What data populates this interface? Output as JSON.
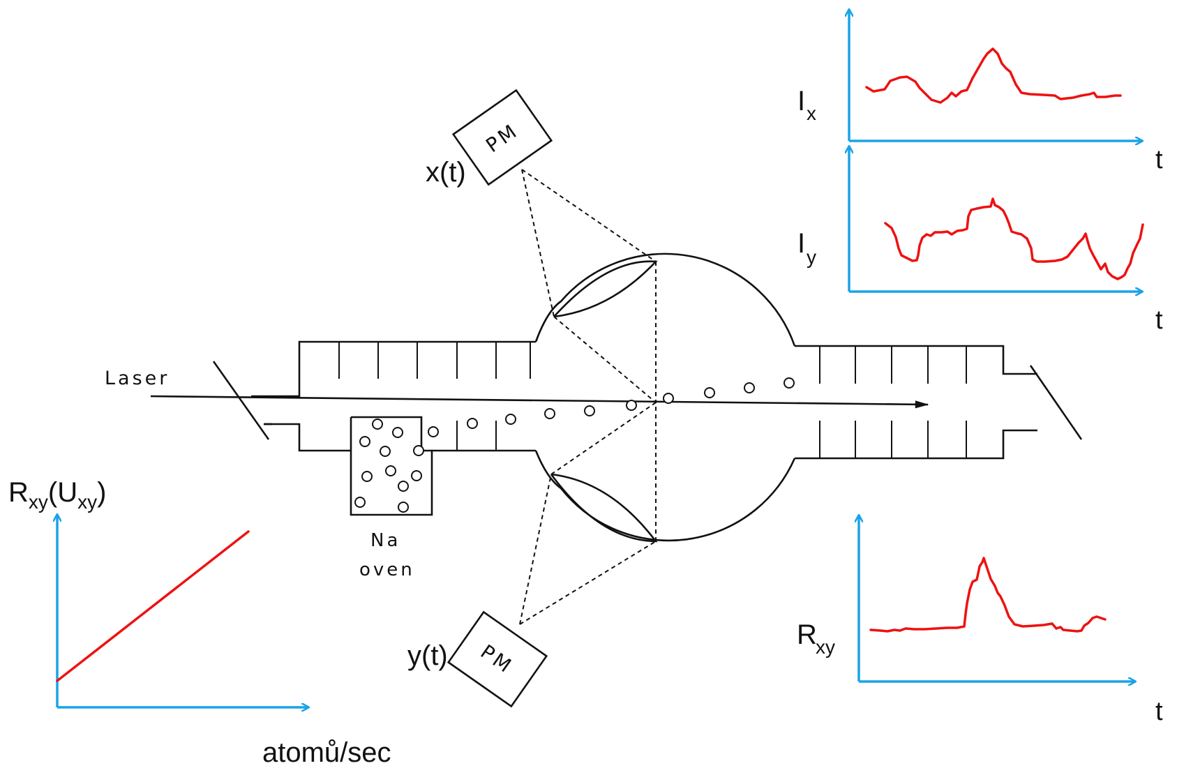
{
  "apparatus": {
    "laser_label": "Laser",
    "oven_label_line1": "Na",
    "oven_label_line2": "oven",
    "detector_label": "PM",
    "signal_x_label": "x(t)",
    "signal_y_label": "y(t)"
  },
  "plots": {
    "ix": {
      "ylabel_main": "I",
      "ylabel_sub": "x",
      "xlabel": "t"
    },
    "iy": {
      "ylabel_main": "I",
      "ylabel_sub": "y",
      "xlabel": "t"
    },
    "rxy": {
      "ylabel_main": "R",
      "ylabel_sub": "xy",
      "xlabel": "t"
    },
    "calibration": {
      "ylabel_r": "R",
      "ylabel_r_sub": "xy",
      "ylabel_u": "(U",
      "ylabel_u_sub": "xy",
      "ylabel_close": ")",
      "xlabel": "atomů/sec"
    }
  },
  "colors": {
    "axis": "#1aa3e8",
    "trace": "#ee1111",
    "ink": "#111111"
  }
}
